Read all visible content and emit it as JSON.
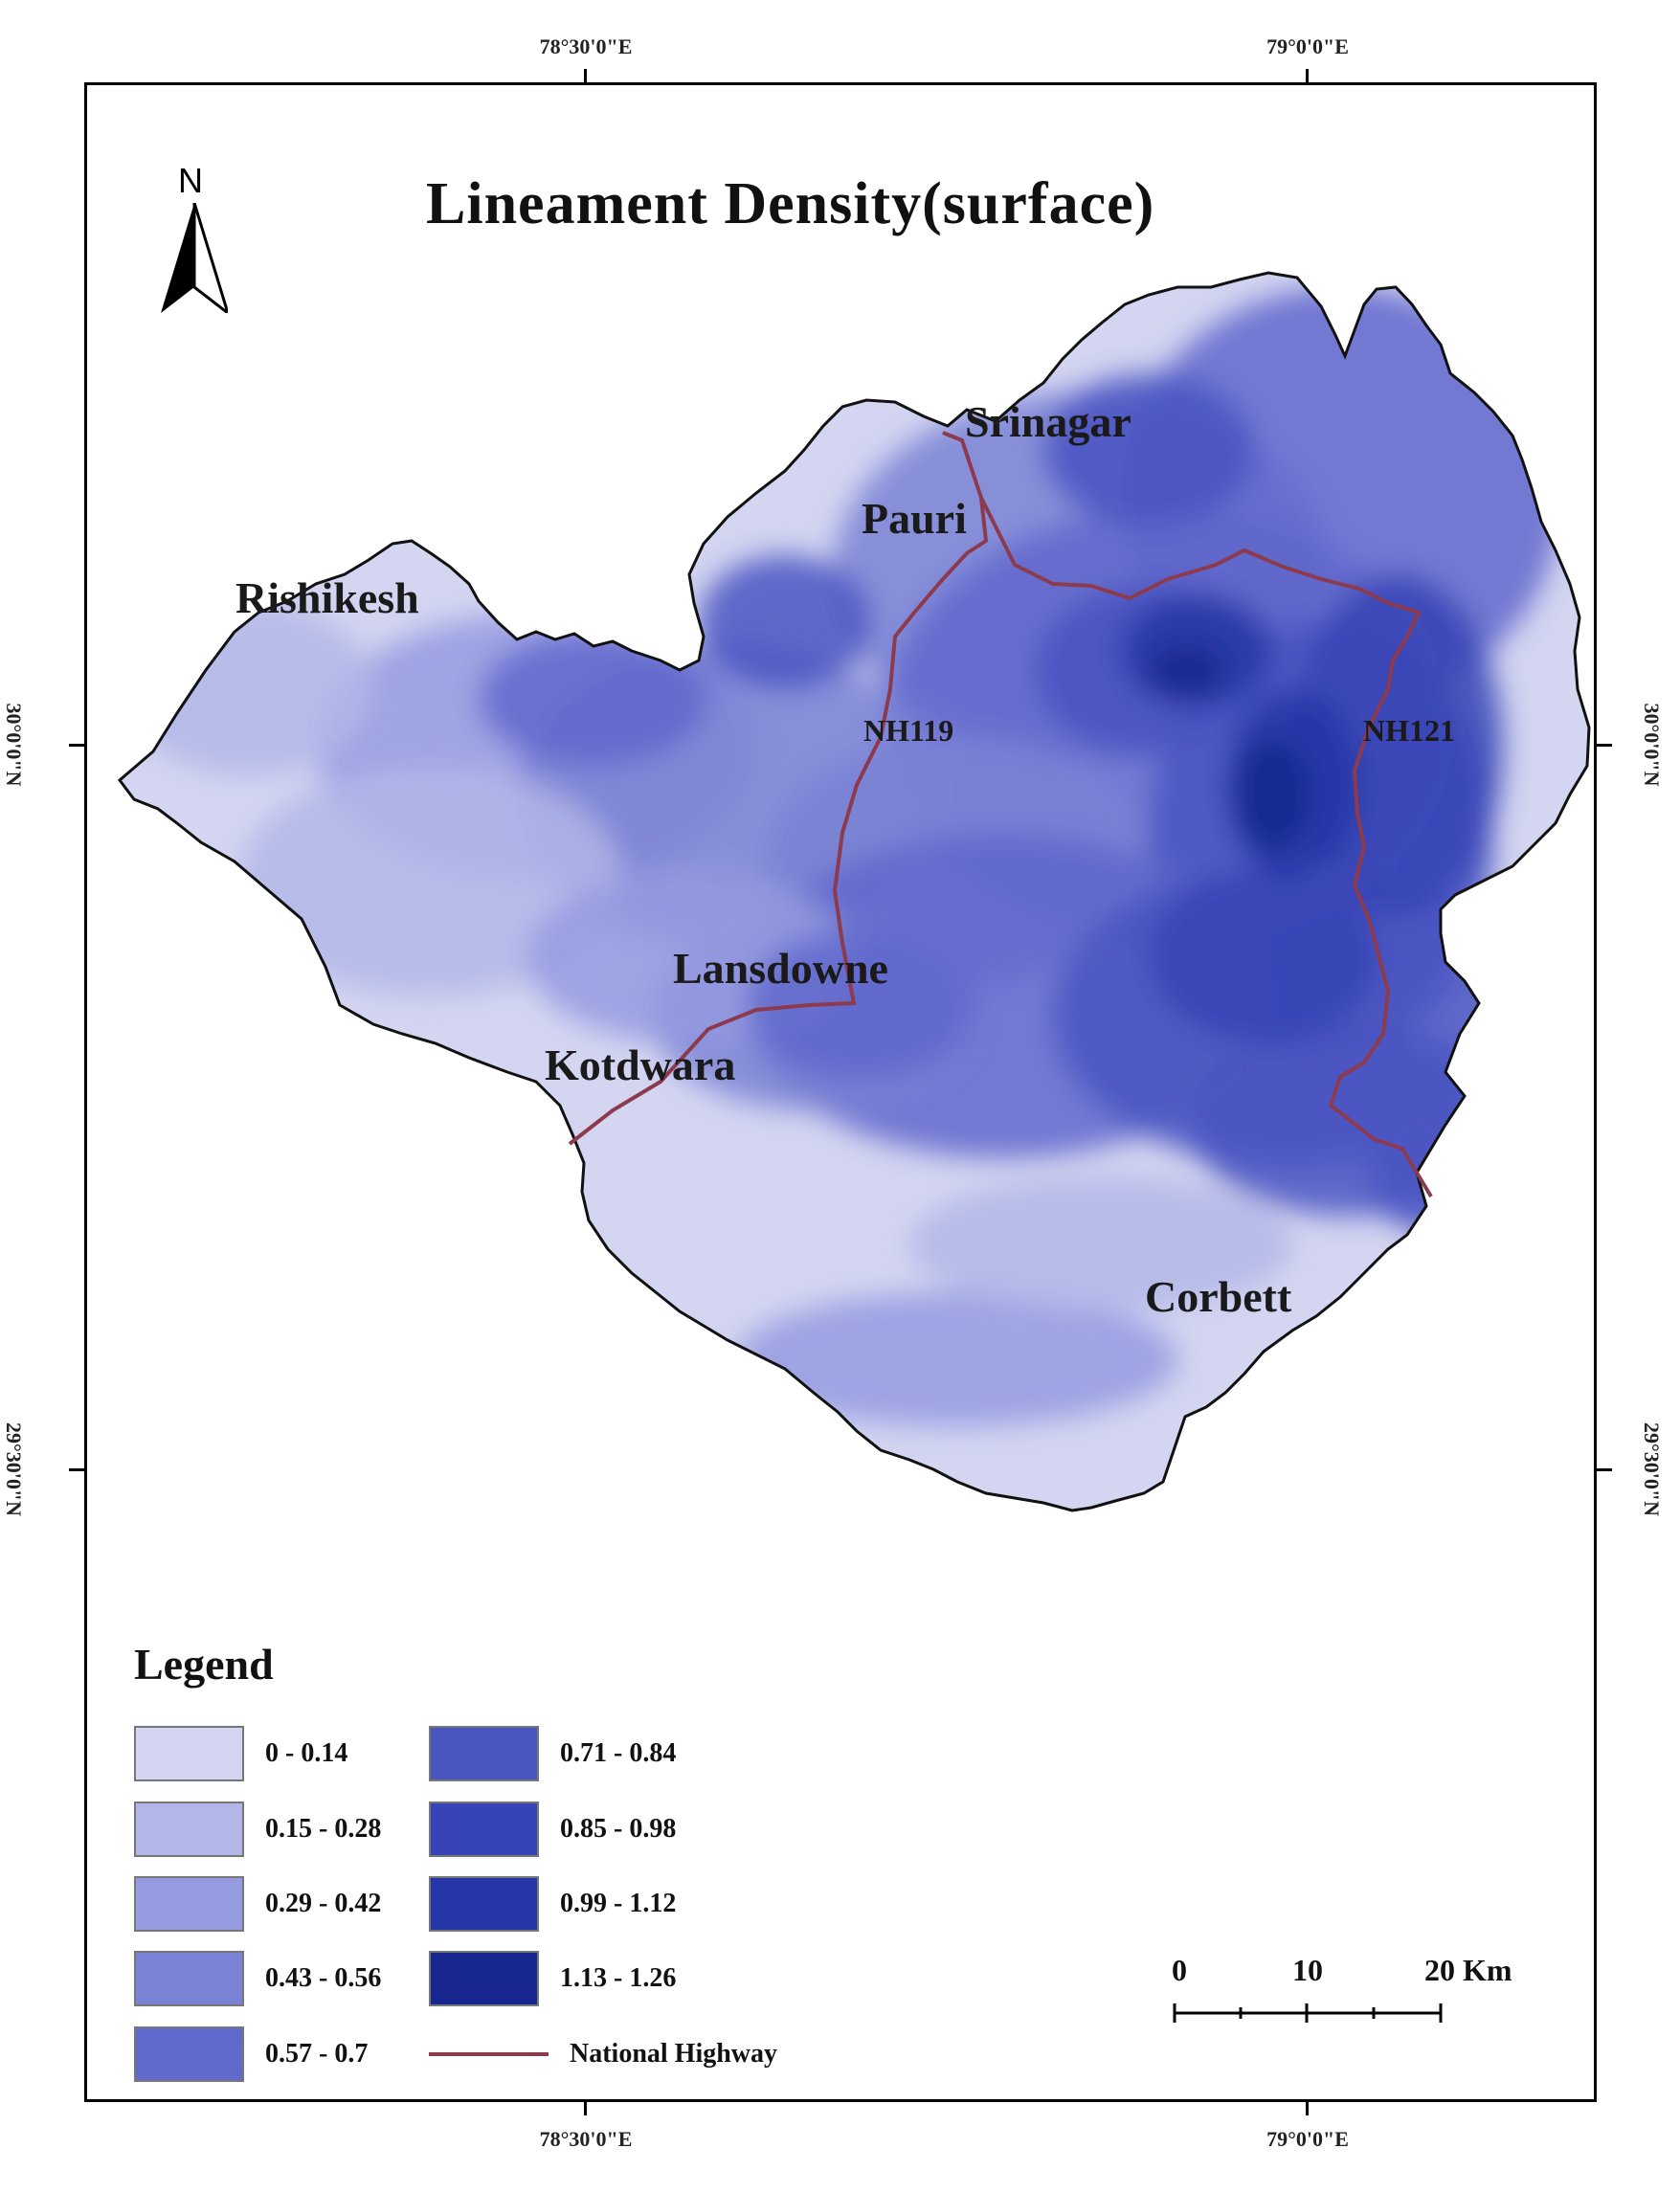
{
  "map": {
    "title": "Lineament Density(surface)",
    "north_label": "N",
    "graticule": {
      "top": [
        "78°30'0\"E",
        "79°0'0\"E"
      ],
      "bottom": [
        "78°30'0\"E",
        "79°0'0\"E"
      ],
      "left": [
        "30°0'0\"N",
        "29°30'0\"N"
      ],
      "right": [
        "30°0'0\"N",
        "29°30'0\"N"
      ]
    },
    "places": {
      "srinagar": "Srinagar",
      "pauri": "Pauri",
      "rishikesh": "Rishikesh",
      "nh119": "NH119",
      "nh121": "NH121",
      "lansdowne": "Lansdowne",
      "kotdwara": "Kotdwara",
      "corbett": "Corbett"
    },
    "legend": {
      "title": "Legend",
      "classes": [
        {
          "label": "0 - 0.14",
          "color": "#d3d5f1"
        },
        {
          "label": "0.15 - 0.28",
          "color": "#b3b7e8"
        },
        {
          "label": "0.29 - 0.42",
          "color": "#959be0"
        },
        {
          "label": "0.43 - 0.56",
          "color": "#7a82d5"
        },
        {
          "label": "0.57 - 0.7",
          "color": "#6169cc"
        },
        {
          "label": "0.71 - 0.84",
          "color": "#4a55c2"
        },
        {
          "label": "0.85 - 0.98",
          "color": "#3744b5"
        },
        {
          "label": "0.99 - 1.12",
          "color": "#2636a6"
        },
        {
          "label": "1.13 - 1.26",
          "color": "#17278f"
        }
      ],
      "highway": {
        "label": "National Highway",
        "color": "#8c3a4e"
      }
    },
    "scale_bar": {
      "labels": [
        "0",
        "10",
        "20 Km"
      ]
    }
  }
}
